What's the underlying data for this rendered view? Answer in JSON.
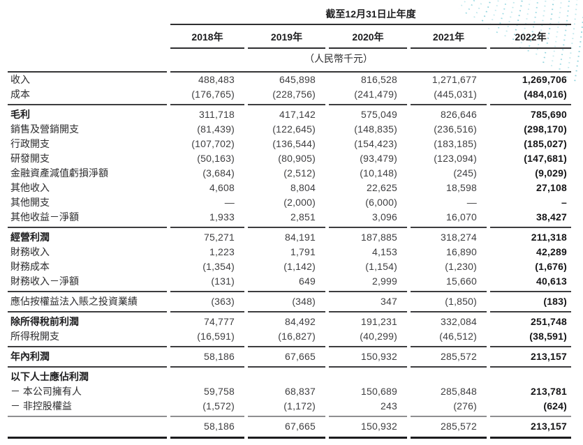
{
  "header": {
    "title": "截至12月31日止年度",
    "unit_note": "（人民幣千元）"
  },
  "decoration": {
    "name": "dotted-wave-pattern",
    "colors": [
      "#c7ebf0",
      "#9ddbe4",
      "#bde7ec",
      "#8ed2dc"
    ]
  },
  "line_colors": {
    "section_divider": "#3c3c3e",
    "subtotal_divider": "#8f8f91",
    "final_rule": "#1b1b1d"
  },
  "table": {
    "columns": [
      "2018年",
      "2019年",
      "2020年",
      "2021年",
      "2022年"
    ],
    "rows": [
      {
        "label": "收入",
        "bold_label": false,
        "values": [
          "488,483",
          "645,898",
          "816,528",
          "1,271,677",
          "1,269,706"
        ],
        "divider_after": null
      },
      {
        "label": "成本",
        "bold_label": false,
        "values": [
          "(176,765)",
          "(228,756)",
          "(241,479)",
          "(445,031)",
          "(484,016)"
        ],
        "divider_after": "thin"
      },
      {
        "label": "毛利",
        "bold_label": true,
        "values": [
          "311,718",
          "417,142",
          "575,049",
          "826,646",
          "785,690"
        ],
        "divider_after": null
      },
      {
        "label": "銷售及營銷開支",
        "bold_label": false,
        "values": [
          "(81,439)",
          "(122,645)",
          "(148,835)",
          "(236,516)",
          "(298,170)"
        ],
        "divider_after": null
      },
      {
        "label": "行政開支",
        "bold_label": false,
        "values": [
          "(107,702)",
          "(136,544)",
          "(154,423)",
          "(183,185)",
          "(185,027)"
        ],
        "divider_after": null
      },
      {
        "label": "研發開支",
        "bold_label": false,
        "values": [
          "(50,163)",
          "(80,905)",
          "(93,479)",
          "(123,094)",
          "(147,681)"
        ],
        "divider_after": null
      },
      {
        "label": "金融資產減值虧損淨額",
        "bold_label": false,
        "values": [
          "(3,684)",
          "(2,512)",
          "(10,148)",
          "(245)",
          "(9,029)"
        ],
        "divider_after": null
      },
      {
        "label": "其他收入",
        "bold_label": false,
        "values": [
          "4,608",
          "8,804",
          "22,625",
          "18,598",
          "27,108"
        ],
        "divider_after": null
      },
      {
        "label": "其他開支",
        "bold_label": false,
        "values": [
          "—",
          "(2,000)",
          "(6,000)",
          "—",
          "–"
        ],
        "divider_after": null
      },
      {
        "label": "其他收益－淨額",
        "bold_label": false,
        "values": [
          "1,933",
          "2,851",
          "3,096",
          "16,070",
          "38,427"
        ],
        "divider_after": "thin"
      },
      {
        "label": "經營利潤",
        "bold_label": true,
        "values": [
          "75,271",
          "84,191",
          "187,885",
          "318,274",
          "211,318"
        ],
        "divider_after": null
      },
      {
        "label": "財務收入",
        "bold_label": false,
        "values": [
          "1,223",
          "1,791",
          "4,153",
          "16,890",
          "42,289"
        ],
        "divider_after": null
      },
      {
        "label": "財務成本",
        "bold_label": false,
        "values": [
          "(1,354)",
          "(1,142)",
          "(1,154)",
          "(1,230)",
          "(1,676)"
        ],
        "divider_after": null
      },
      {
        "label": "財務收入－淨額",
        "bold_label": false,
        "values": [
          "(131)",
          "649",
          "2,999",
          "15,660",
          "40,613"
        ],
        "divider_after": "thin"
      },
      {
        "label": "應佔按權益法入賬之投資業績",
        "bold_label": false,
        "values": [
          "(363)",
          "(348)",
          "347",
          "(1,850)",
          "(183)"
        ],
        "divider_after": "thin"
      },
      {
        "label": "除所得稅前利潤",
        "bold_label": true,
        "values": [
          "74,777",
          "84,492",
          "191,231",
          "332,084",
          "251,748"
        ],
        "divider_after": null
      },
      {
        "label": "所得稅開支",
        "bold_label": false,
        "values": [
          "(16,591)",
          "(16,827)",
          "(40,299)",
          "(46,512)",
          "(38,591)"
        ],
        "divider_after": "thin"
      },
      {
        "label": "年內利潤",
        "bold_label": true,
        "values": [
          "58,186",
          "67,665",
          "150,932",
          "285,572",
          "213,157"
        ],
        "divider_after": "thin"
      },
      {
        "label": "以下人士應佔利潤",
        "bold_label": true,
        "values": [
          "",
          "",
          "",
          "",
          ""
        ],
        "divider_after": null,
        "section_gap": true
      },
      {
        "label": "－ 本公司擁有人",
        "bold_label": false,
        "values": [
          "59,758",
          "68,837",
          "150,689",
          "285,848",
          "213,781"
        ],
        "divider_after": null
      },
      {
        "label": "－ 非控股權益",
        "bold_label": false,
        "values": [
          "(1,572)",
          "(1,172)",
          "243",
          "(276)",
          "(624)"
        ],
        "divider_after": "gray"
      },
      {
        "label": "",
        "bold_label": false,
        "values": [
          "58,186",
          "67,665",
          "150,932",
          "285,572",
          "213,157"
        ],
        "divider_after": "thick"
      }
    ]
  }
}
